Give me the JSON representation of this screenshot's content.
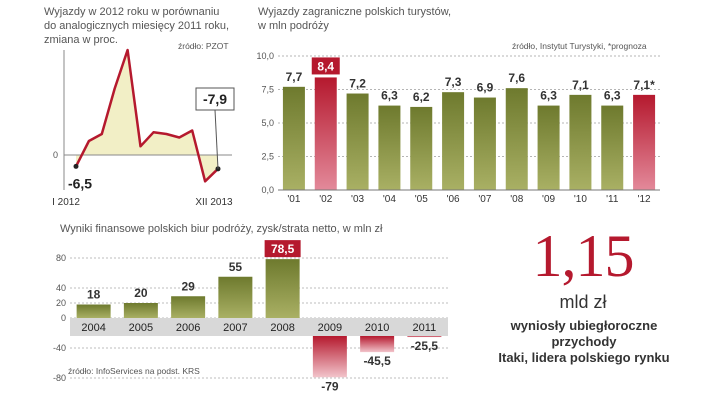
{
  "colors": {
    "olive_dark": "#6e7a2e",
    "olive_light": "#a9b064",
    "red_dark": "#b5192e",
    "red_light": "#f2c4cb",
    "cream": "#f2efc6",
    "text": "#333333"
  },
  "chart_data": [
    {
      "type": "line",
      "title": "Wyjazdy w 2012 roku w porównaniu do analogicznych miesięcy 2011 roku, zmiana w proc.",
      "title_lines": [
        "Wyjazdy w 2012 roku w porównaniu",
        "do analogicznych miesięcy 2011 roku,",
        "zmiana w proc."
      ],
      "source": "źródło: PZOT",
      "x_labels": [
        "I 2012",
        "XII 2013"
      ],
      "y_tick_labels": [
        "0"
      ],
      "ylim": [
        -20,
        60
      ],
      "values": [
        -6.5,
        8,
        12,
        38,
        60,
        5,
        13,
        12,
        10,
        14,
        -15,
        -7.9
      ],
      "labels": {
        "first": "-6,5",
        "last": "-7,9"
      }
    },
    {
      "type": "bar",
      "title": "Wyjazdy zagraniczne polskich turystów, w mln podróży",
      "title_lines": [
        "Wyjazdy zagraniczne polskich turystów,",
        "w mln podróży"
      ],
      "source": "źródło, Instytut Turystyki, *prognoza",
      "categories": [
        "'01",
        "'02",
        "'03",
        "'04",
        "'05",
        "'06",
        "'07",
        "'08",
        "'09",
        "'10",
        "'11",
        "'12"
      ],
      "values": [
        7.7,
        8.4,
        7.2,
        6.3,
        6.2,
        7.3,
        6.9,
        7.6,
        6.3,
        7.1,
        6.3,
        7.1
      ],
      "value_labels": [
        "7,7",
        "8,4",
        "7,2",
        "6,3",
        "6,2",
        "7,3",
        "6,9",
        "7,6",
        "6,3",
        "7,1",
        "6,3",
        "7,1*"
      ],
      "highlight": [
        1,
        11
      ],
      "y_ticks": [
        "0,0",
        "2,5",
        "5,0",
        "7,5",
        "10,0"
      ],
      "ylim": [
        0,
        10
      ]
    },
    {
      "type": "bar",
      "title": "Wyniki finansowe polskich biur podróży, zysk/strata netto,  w mln zł",
      "source": "źródło: InfoServices na podst. KRS",
      "categories": [
        "2004",
        "2005",
        "2006",
        "2007",
        "2008",
        "2009",
        "2010",
        "2011"
      ],
      "values": [
        18,
        20,
        29,
        55,
        78.5,
        -79,
        -45.5,
        -25.5
      ],
      "value_labels": [
        "18",
        "20",
        "29",
        "55",
        "78,5",
        "-79",
        "-45,5",
        "-25,5"
      ],
      "highlight": [
        4
      ],
      "y_ticks": [
        "80",
        "40",
        "20",
        "0",
        "-40",
        "-80"
      ],
      "ylim": [
        -80,
        80
      ]
    }
  ],
  "callout": {
    "value": "1,15",
    "unit": "mld zł",
    "lines": [
      "wyniosły ubiegłoroczne",
      "przychody",
      "Itaki, lidera polskiego rynku"
    ]
  }
}
